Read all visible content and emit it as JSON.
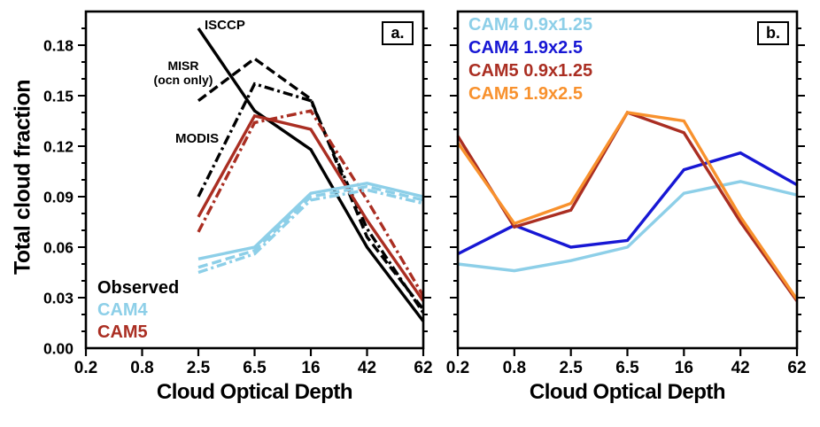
{
  "figure": {
    "ylabel": "Total cloud fraction"
  },
  "chart_data": [
    {
      "type": "line",
      "panel_label": "a.",
      "xlabel": "Cloud Optical Depth",
      "ylabel": "Total cloud fraction",
      "categories": [
        "0.2",
        "0.8",
        "2.5",
        "6.5",
        "16",
        "42",
        "62"
      ],
      "ylim": [
        0,
        0.2
      ],
      "ytick_step_major": 0.03,
      "ytick_step_minor": 0.01,
      "ytick_labels": [
        "0.00",
        "0.03",
        "0.06",
        "0.09",
        "0.12",
        "0.15",
        "0.18"
      ],
      "grid": false,
      "legend_position": "bottom-left",
      "legend": [
        {
          "label": "Observed",
          "color": "#000000"
        },
        {
          "label": "CAM4",
          "color": "#8dcfe8"
        },
        {
          "label": "CAM5",
          "color": "#aa2e22"
        }
      ],
      "annotations": [
        {
          "text": "ISCCP"
        },
        {
          "text": "MISR"
        },
        {
          "text": "(ocn only)"
        },
        {
          "text": "MODIS"
        }
      ],
      "series": [
        {
          "name": "ISCCP",
          "group": "Observed",
          "color": "#000000",
          "style": "solid",
          "x": [
            "2.5",
            "6.5",
            "16",
            "42",
            "62"
          ],
          "values": [
            0.19,
            0.141,
            0.118,
            0.06,
            0.016
          ]
        },
        {
          "name": "MISR (ocn only)",
          "group": "Observed",
          "color": "#000000",
          "style": "dashed",
          "x": [
            "2.5",
            "6.5",
            "16",
            "42",
            "62"
          ],
          "values": [
            0.147,
            0.172,
            0.148,
            0.066,
            0.023
          ]
        },
        {
          "name": "MODIS",
          "group": "Observed",
          "color": "#000000",
          "style": "dashdot",
          "x": [
            "2.5",
            "6.5",
            "16",
            "42",
            "62"
          ],
          "values": [
            0.09,
            0.157,
            0.147,
            0.071,
            0.021
          ]
        },
        {
          "name": "CAM5 solid",
          "group": "CAM5",
          "color": "#aa2e22",
          "style": "solid",
          "x": [
            "2.5",
            "6.5",
            "16",
            "42",
            "62"
          ],
          "values": [
            0.078,
            0.138,
            0.13,
            0.076,
            0.028
          ]
        },
        {
          "name": "CAM5 dash-dot",
          "group": "CAM5",
          "color": "#aa2e22",
          "style": "dashdot",
          "x": [
            "2.5",
            "6.5",
            "16",
            "42",
            "62"
          ],
          "values": [
            0.069,
            0.134,
            0.141,
            0.088,
            0.031
          ]
        },
        {
          "name": "CAM4 solid",
          "group": "CAM4",
          "color": "#8dcfe8",
          "style": "solid",
          "x": [
            "2.5",
            "6.5",
            "16",
            "42",
            "62"
          ],
          "values": [
            0.053,
            0.06,
            0.092,
            0.098,
            0.09
          ]
        },
        {
          "name": "CAM4 dashed",
          "group": "CAM4",
          "color": "#8dcfe8",
          "style": "dashed",
          "x": [
            "2.5",
            "6.5",
            "16",
            "42",
            "62"
          ],
          "values": [
            0.048,
            0.058,
            0.09,
            0.096,
            0.088
          ]
        },
        {
          "name": "CAM4 dash-dot",
          "group": "CAM4",
          "color": "#8dcfe8",
          "style": "dashdot",
          "x": [
            "2.5",
            "6.5",
            "16",
            "42",
            "62"
          ],
          "values": [
            0.045,
            0.056,
            0.088,
            0.094,
            0.086
          ]
        }
      ]
    },
    {
      "type": "line",
      "panel_label": "b.",
      "xlabel": "Cloud Optical Depth",
      "ylabel": "",
      "categories": [
        "0.2",
        "0.8",
        "2.5",
        "6.5",
        "16",
        "42",
        "62"
      ],
      "ylim": [
        0,
        0.2
      ],
      "ytick_step_major": 0.03,
      "ytick_step_minor": 0.01,
      "ytick_labels": [],
      "grid": false,
      "legend_position": "top-left",
      "legend": [
        {
          "label": "CAM4 0.9x1.25",
          "color": "#8dcfe8"
        },
        {
          "label": "CAM4 1.9x2.5",
          "color": "#1717d4"
        },
        {
          "label": "CAM5 0.9x1.25",
          "color": "#aa2e22"
        },
        {
          "label": "CAM5 1.9x2.5",
          "color": "#f8912d"
        }
      ],
      "annotations": [],
      "series": [
        {
          "name": "CAM4 0.9x1.25",
          "color": "#8dcfe8",
          "style": "solid",
          "x": [
            "0.2",
            "0.8",
            "2.5",
            "6.5",
            "16",
            "42",
            "62"
          ],
          "values": [
            0.05,
            0.046,
            0.052,
            0.06,
            0.092,
            0.099,
            0.091
          ]
        },
        {
          "name": "CAM4 1.9x2.5",
          "color": "#1717d4",
          "style": "solid",
          "x": [
            "0.2",
            "0.8",
            "2.5",
            "6.5",
            "16",
            "42",
            "62"
          ],
          "values": [
            0.056,
            0.073,
            0.06,
            0.064,
            0.106,
            0.116,
            0.097
          ]
        },
        {
          "name": "CAM5 0.9x1.25",
          "color": "#aa2e22",
          "style": "solid",
          "x": [
            "0.2",
            "0.8",
            "2.5",
            "6.5",
            "16",
            "42",
            "62"
          ],
          "values": [
            0.126,
            0.072,
            0.082,
            0.14,
            0.128,
            0.075,
            0.028
          ]
        },
        {
          "name": "CAM5 1.9x2.5",
          "color": "#f8912d",
          "style": "solid",
          "x": [
            "0.2",
            "0.8",
            "2.5",
            "6.5",
            "16",
            "42",
            "62"
          ],
          "values": [
            0.122,
            0.074,
            0.086,
            0.14,
            0.135,
            0.078,
            0.029
          ]
        }
      ]
    }
  ]
}
